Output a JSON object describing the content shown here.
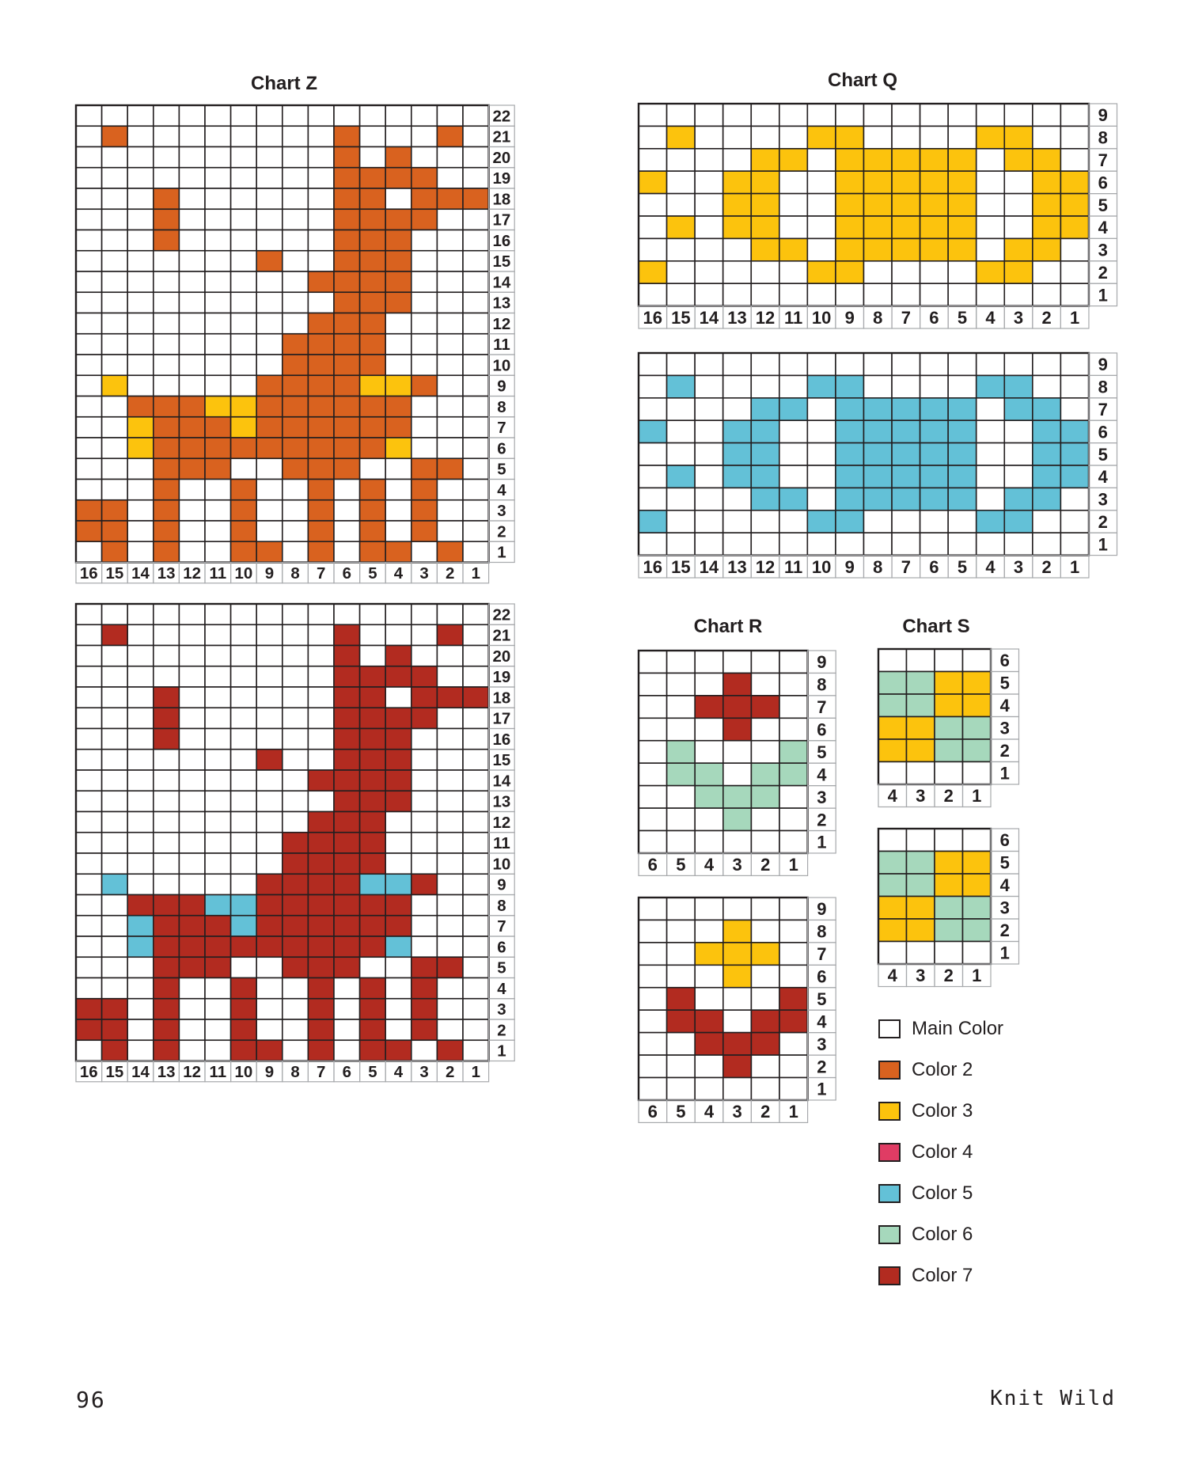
{
  "colors": {
    "main": "#ffffff",
    "color2": "#d9621f",
    "color3": "#fcc30d",
    "color4": "#e03c64",
    "color5": "#63c1d7",
    "color6": "#a6d8bc",
    "color7": "#b22b20",
    "grid": "#231f20",
    "axis": "#a7a9ac"
  },
  "titles": {
    "chart_z": "Chart Z",
    "chart_q": "Chart Q",
    "chart_r": "Chart R",
    "chart_s": "Chart S"
  },
  "legend": [
    {
      "label": "Main Color",
      "color": "#ffffff"
    },
    {
      "label": "Color 2",
      "color": "#d9621f"
    },
    {
      "label": "Color 3",
      "color": "#fcc30d"
    },
    {
      "label": "Color 4",
      "color": "#e03c64"
    },
    {
      "label": "Color 5",
      "color": "#63c1d7"
    },
    {
      "label": "Color 6",
      "color": "#a6d8bc"
    },
    {
      "label": "Color 7",
      "color": "#b22b20"
    }
  ],
  "footer": {
    "page_number": "96",
    "book_title": "Knit Wild"
  },
  "chart_data": [
    {
      "id": "chart-z-1",
      "type": "heatmap",
      "title": "Chart Z",
      "stitches": 16,
      "rows": 22,
      "legend_map": {
        "A": "#d9621f",
        "B": "#fcc30d"
      },
      "grid": [
        "................",
        ".A........A...A.",
        "..........A.A...",
        "..........AAAA..",
        "...A......AA.AAA",
        "...A......AAAA..",
        "...A......AAA...",
        ".......A..AAA...",
        ".........AAAA...",
        "..........AAA...",
        ".........AAA....",
        "........AAAA....",
        "........AAAA....",
        ".B.....AAAABBA..",
        "..AAABBAAAAAA...",
        "..BAAABAAAAAA...",
        "..BAAAAAAAAAB...",
        "...AAA..AAA..AA.",
        "...A..A..A.A.A..",
        "AA.A..A..A.A.A..",
        "AA.A..A..A.A.A..",
        ".A.A..AA.A.AA.A."
      ]
    },
    {
      "id": "chart-z-2",
      "type": "heatmap",
      "stitches": 16,
      "rows": 22,
      "legend_map": {
        "A": "#b22b20",
        "B": "#63c1d7"
      },
      "grid": [
        "................",
        ".A........A...A.",
        "..........A.A...",
        "..........AAAA..",
        "...A......AA.AAA",
        "...A......AAAA..",
        "...A......AAA...",
        ".......A..AAA...",
        ".........AAAA...",
        "..........AAA...",
        ".........AAA....",
        "........AAAA....",
        "........AAAA....",
        ".B.....AAAABBA..",
        "..AAABBAAAAAA...",
        "..BAAABAAAAAA...",
        "..BAAAAAAAAAB...",
        "...AAA..AAA..AA.",
        "...A..A..A.A.A..",
        "AA.A..A..A.A.A..",
        "AA.A..A..A.A.A..",
        ".A.A..AA.A.AA.A."
      ]
    },
    {
      "id": "chart-q-1",
      "type": "heatmap",
      "title": "Chart Q",
      "stitches": 16,
      "rows": 9,
      "legend_map": {
        "A": "#fcc30d"
      },
      "grid": [
        "................",
        ".A....AA....AA..",
        "....AA.AAAAA.AA.",
        "A..AA..AAAAA..AA",
        "...AA..AAAAA..AA",
        ".A.AA..AAAAA..AA",
        "....AA.AAAAA.AA.",
        "A.....AA....AA..",
        "................"
      ]
    },
    {
      "id": "chart-q-2",
      "type": "heatmap",
      "stitches": 16,
      "rows": 9,
      "legend_map": {
        "A": "#63c1d7"
      },
      "grid": [
        "................",
        ".A....AA....AA..",
        "....AA.AAAAA.AA.",
        "A..AA..AAAAA..AA",
        "...AA..AAAAA..AA",
        ".A.AA..AAAAA..AA",
        "....AA.AAAAA.AA.",
        "A.....AA....AA..",
        "................"
      ]
    },
    {
      "id": "chart-r-1",
      "type": "heatmap",
      "title": "Chart R",
      "stitches": 6,
      "rows": 9,
      "legend_map": {
        "A": "#b22b20",
        "B": "#a6d8bc"
      },
      "grid": [
        "......",
        "...A..",
        "..AAA.",
        "...A..",
        ".B...B",
        ".BB.BB",
        "..BBB.",
        "...B..",
        "......"
      ]
    },
    {
      "id": "chart-r-2",
      "type": "heatmap",
      "stitches": 6,
      "rows": 9,
      "legend_map": {
        "A": "#fcc30d",
        "B": "#b22b20"
      },
      "grid": [
        "......",
        "...A..",
        "..AAA.",
        "...A..",
        ".B...B",
        ".BB.BB",
        "..BBB.",
        "...B..",
        "......"
      ]
    },
    {
      "id": "chart-s-1",
      "type": "heatmap",
      "title": "Chart S",
      "stitches": 4,
      "rows": 6,
      "legend_map": {
        "A": "#a6d8bc",
        "B": "#fcc30d"
      },
      "grid": [
        "....",
        "AABB",
        "AABB",
        "BBAA",
        "BBAA",
        "...."
      ]
    },
    {
      "id": "chart-s-2",
      "type": "heatmap",
      "stitches": 4,
      "rows": 6,
      "legend_map": {
        "A": "#a6d8bc",
        "B": "#fcc30d"
      },
      "grid": [
        "....",
        "AABB",
        "AABB",
        "BBAA",
        "BBAA",
        "...."
      ]
    }
  ]
}
